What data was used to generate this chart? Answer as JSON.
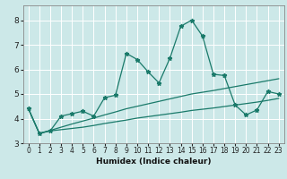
{
  "xlabel": "Humidex (Indice chaleur)",
  "bg_color": "#cce8e8",
  "plot_bg_color": "#cce8e8",
  "line_color": "#1a7a6a",
  "xlim": [
    -0.5,
    23.5
  ],
  "ylim": [
    3.0,
    8.6
  ],
  "yticks": [
    3,
    4,
    5,
    6,
    7,
    8
  ],
  "xticks": [
    0,
    1,
    2,
    3,
    4,
    5,
    6,
    7,
    8,
    9,
    10,
    11,
    12,
    13,
    14,
    15,
    16,
    17,
    18,
    19,
    20,
    21,
    22,
    23
  ],
  "series_main": [
    4.4,
    3.4,
    3.5,
    4.1,
    4.2,
    4.3,
    4.1,
    4.85,
    4.95,
    6.65,
    6.4,
    5.9,
    5.45,
    6.45,
    7.75,
    8.0,
    7.35,
    5.8,
    5.75,
    4.55,
    4.15,
    4.35,
    5.1,
    5.0
  ],
  "series_upper": [
    4.4,
    3.4,
    3.52,
    3.65,
    3.78,
    3.9,
    4.02,
    4.15,
    4.27,
    4.4,
    4.5,
    4.6,
    4.7,
    4.8,
    4.9,
    5.0,
    5.07,
    5.14,
    5.22,
    5.3,
    5.38,
    5.46,
    5.54,
    5.62
  ],
  "series_lower": [
    4.4,
    3.4,
    3.5,
    3.55,
    3.6,
    3.65,
    3.72,
    3.8,
    3.87,
    3.94,
    4.02,
    4.08,
    4.14,
    4.2,
    4.26,
    4.33,
    4.38,
    4.43,
    4.49,
    4.55,
    4.61,
    4.67,
    4.74,
    4.82
  ]
}
